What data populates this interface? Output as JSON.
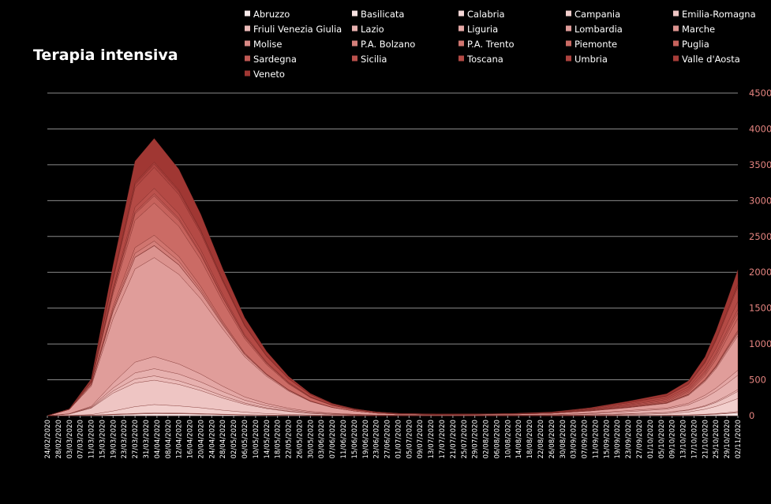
{
  "chart_data": {
    "type": "area",
    "stacked": true,
    "title": "Terapia intensiva",
    "xlabel": "",
    "ylabel": "",
    "ylim": [
      0,
      4500
    ],
    "yticks": [
      0,
      500,
      1000,
      1500,
      2000,
      2500,
      3000,
      3500,
      4000,
      4500
    ],
    "grid": true,
    "legend_position": "top",
    "x_tick_labels": [
      "24/02/2020",
      "28/02/2020",
      "03/03/2020",
      "07/03/2020",
      "11/03/2020",
      "15/03/2020",
      "19/03/2020",
      "23/03/2020",
      "27/03/2020",
      "31/03/2020",
      "04/04/2020",
      "08/04/2020",
      "12/04/2020",
      "16/04/2020",
      "20/04/2020",
      "24/04/2020",
      "28/04/2020",
      "02/05/2020",
      "06/05/2020",
      "10/05/2020",
      "14/05/2020",
      "18/05/2020",
      "22/05/2020",
      "26/05/2020",
      "30/05/2020",
      "03/06/2020",
      "07/06/2020",
      "11/06/2020",
      "15/06/2020",
      "19/06/2020",
      "23/06/2020",
      "27/06/2020",
      "01/07/2020",
      "05/07/2020",
      "09/07/2020",
      "13/07/2020",
      "17/07/2020",
      "21/07/2020",
      "25/07/2020",
      "29/07/2020",
      "02/08/2020",
      "06/08/2020",
      "10/08/2020",
      "14/08/2020",
      "18/08/2020",
      "22/08/2020",
      "26/08/2020",
      "30/08/2020",
      "03/09/2020",
      "07/09/2020",
      "11/09/2020",
      "15/09/2020",
      "19/09/2020",
      "23/09/2020",
      "27/09/2020",
      "01/10/2020",
      "05/10/2020",
      "09/10/2020",
      "13/10/2020",
      "17/10/2020",
      "21/10/2020",
      "25/10/2020",
      "29/10/2020",
      "02/11/2020"
    ],
    "x": [
      "24/02/2020",
      "03/03/2020",
      "11/03/2020",
      "19/03/2020",
      "27/03/2020",
      "03/04/2020",
      "12/04/2020",
      "20/04/2020",
      "28/04/2020",
      "06/05/2020",
      "14/05/2020",
      "22/05/2020",
      "30/05/2020",
      "07/06/2020",
      "15/06/2020",
      "23/06/2020",
      "01/07/2020",
      "15/07/2020",
      "29/07/2020",
      "12/08/2020",
      "26/08/2020",
      "09/09/2020",
      "23/09/2020",
      "07/10/2020",
      "15/10/2020",
      "21/10/2020",
      "25/10/2020",
      "29/10/2020",
      "02/11/2020"
    ],
    "series": [
      {
        "name": "Abruzzo",
        "color": "#fbecec",
        "values": [
          0,
          1,
          5,
          14,
          22,
          28,
          26,
          21,
          15,
          10,
          6,
          4,
          2,
          1,
          1,
          0,
          0,
          0,
          0,
          0,
          0,
          0,
          2,
          4,
          8,
          14,
          20,
          28,
          40
        ]
      },
      {
        "name": "Basilicata",
        "color": "#f8e2e1",
        "values": [
          0,
          0,
          1,
          2,
          3,
          4,
          3,
          3,
          2,
          1,
          1,
          1,
          0,
          0,
          0,
          0,
          0,
          0,
          0,
          0,
          0,
          0,
          0,
          1,
          1,
          2,
          3,
          4,
          5
        ]
      },
      {
        "name": "Calabria",
        "color": "#f5d8d7",
        "values": [
          0,
          0,
          1,
          4,
          6,
          8,
          7,
          6,
          4,
          3,
          2,
          1,
          0,
          0,
          0,
          0,
          0,
          0,
          0,
          0,
          0,
          0,
          1,
          1,
          2,
          4,
          6,
          10,
          14
        ]
      },
      {
        "name": "Campania",
        "color": "#f2cfcd",
        "values": [
          0,
          2,
          8,
          45,
          95,
          115,
          100,
          80,
          55,
          35,
          20,
          12,
          7,
          3,
          2,
          1,
          1,
          1,
          1,
          1,
          2,
          5,
          12,
          22,
          40,
          70,
          100,
          140,
          180
        ]
      },
      {
        "name": "Emilia-Romagna",
        "color": "#eec5c3",
        "values": [
          0,
          20,
          90,
          250,
          330,
          340,
          300,
          240,
          170,
          110,
          70,
          40,
          22,
          12,
          7,
          4,
          3,
          2,
          2,
          2,
          3,
          6,
          10,
          15,
          25,
          40,
          55,
          75,
          100
        ]
      },
      {
        "name": "Friuli Venezia Giulia",
        "color": "#ebbbb9",
        "values": [
          0,
          1,
          5,
          30,
          55,
          60,
          50,
          40,
          30,
          18,
          10,
          6,
          3,
          2,
          1,
          0,
          0,
          0,
          0,
          0,
          0,
          1,
          2,
          3,
          6,
          10,
          15,
          20,
          25
        ]
      },
      {
        "name": "Lazio",
        "color": "#e7b1af",
        "values": [
          0,
          2,
          10,
          40,
          85,
          100,
          95,
          80,
          60,
          40,
          30,
          20,
          12,
          8,
          5,
          3,
          2,
          2,
          3,
          4,
          6,
          15,
          30,
          45,
          70,
          110,
          140,
          170,
          200
        ]
      },
      {
        "name": "Liguria",
        "color": "#e4a7a5",
        "values": [
          0,
          1,
          10,
          70,
          150,
          170,
          140,
          110,
          75,
          45,
          30,
          20,
          12,
          7,
          4,
          2,
          1,
          1,
          0,
          1,
          2,
          8,
          15,
          15,
          22,
          35,
          45,
          60,
          70
        ]
      },
      {
        "name": "Lombardia",
        "color": "#e09d9a",
        "values": [
          0,
          60,
          280,
          900,
          1300,
          1380,
          1250,
          1050,
          800,
          560,
          380,
          240,
          140,
          80,
          45,
          25,
          15,
          10,
          12,
          14,
          20,
          30,
          40,
          65,
          110,
          190,
          270,
          380,
          480
        ]
      },
      {
        "name": "Marche",
        "color": "#dc938f",
        "values": [
          0,
          0,
          20,
          100,
          160,
          165,
          130,
          90,
          55,
          30,
          20,
          12,
          6,
          3,
          1,
          1,
          0,
          0,
          0,
          0,
          1,
          2,
          4,
          6,
          10,
          15,
          20,
          28,
          35
        ]
      },
      {
        "name": "Molise",
        "color": "#d88985",
        "values": [
          0,
          0,
          1,
          3,
          4,
          5,
          4,
          3,
          2,
          1,
          1,
          0,
          0,
          0,
          0,
          0,
          0,
          0,
          0,
          0,
          0,
          0,
          1,
          1,
          1,
          2,
          3,
          4,
          5
        ]
      },
      {
        "name": "P.A. Bolzano",
        "color": "#d47f7a",
        "values": [
          0,
          0,
          3,
          25,
          55,
          62,
          50,
          35,
          20,
          10,
          5,
          3,
          1,
          0,
          0,
          0,
          0,
          0,
          0,
          0,
          0,
          1,
          1,
          2,
          3,
          6,
          10,
          15,
          20
        ]
      },
      {
        "name": "P.A. Trento",
        "color": "#d0756f",
        "values": [
          0,
          0,
          5,
          40,
          80,
          80,
          65,
          45,
          25,
          12,
          7,
          4,
          2,
          1,
          0,
          0,
          0,
          0,
          0,
          0,
          0,
          1,
          1,
          2,
          3,
          5,
          8,
          12,
          15
        ]
      },
      {
        "name": "Piemonte",
        "color": "#cb6b65",
        "values": [
          0,
          2,
          20,
          180,
          380,
          450,
          420,
          370,
          280,
          200,
          130,
          80,
          45,
          25,
          15,
          8,
          5,
          3,
          2,
          2,
          3,
          5,
          8,
          12,
          25,
          55,
          90,
          130,
          170
        ]
      },
      {
        "name": "Puglia",
        "color": "#c6625c",
        "values": [
          0,
          0,
          5,
          35,
          90,
          100,
          85,
          70,
          50,
          30,
          20,
          12,
          6,
          3,
          2,
          1,
          1,
          0,
          0,
          0,
          1,
          4,
          10,
          15,
          20,
          30,
          45,
          60,
          75
        ]
      },
      {
        "name": "Sardegna",
        "color": "#c05954",
        "values": [
          0,
          0,
          2,
          12,
          25,
          30,
          25,
          20,
          12,
          6,
          4,
          2,
          1,
          0,
          0,
          0,
          0,
          0,
          0,
          0,
          1,
          5,
          12,
          18,
          22,
          28,
          35,
          42,
          50
        ]
      },
      {
        "name": "Sicilia",
        "color": "#ba514c",
        "values": [
          0,
          0,
          5,
          30,
          70,
          75,
          65,
          50,
          35,
          20,
          12,
          8,
          5,
          3,
          2,
          1,
          0,
          0,
          0,
          1,
          2,
          6,
          12,
          20,
          30,
          50,
          70,
          90,
          110
        ]
      },
      {
        "name": "Toscana",
        "color": "#b44a45",
        "values": [
          0,
          1,
          10,
          120,
          270,
          290,
          270,
          230,
          180,
          120,
          80,
          50,
          30,
          15,
          8,
          5,
          3,
          2,
          2,
          3,
          5,
          10,
          18,
          25,
          40,
          70,
          110,
          150,
          200
        ]
      },
      {
        "name": "Umbria",
        "color": "#ae433f",
        "values": [
          0,
          0,
          3,
          20,
          45,
          48,
          40,
          30,
          20,
          12,
          6,
          3,
          1,
          0,
          0,
          0,
          0,
          0,
          0,
          0,
          0,
          1,
          2,
          4,
          8,
          12,
          18,
          25,
          32
        ]
      },
      {
        "name": "Valle d'Aosta",
        "color": "#a73d39",
        "values": [
          0,
          0,
          2,
          12,
          25,
          27,
          22,
          15,
          10,
          5,
          3,
          1,
          0,
          0,
          0,
          0,
          0,
          0,
          0,
          0,
          0,
          0,
          0,
          0,
          1,
          2,
          4,
          6,
          8
        ]
      },
      {
        "name": "Veneto",
        "color": "#a03733",
        "values": [
          0,
          5,
          25,
          170,
          300,
          330,
          290,
          220,
          150,
          100,
          60,
          30,
          15,
          8,
          4,
          2,
          1,
          1,
          1,
          3,
          5,
          10,
          20,
          30,
          40,
          70,
          110,
          150,
          200
        ]
      }
    ]
  }
}
